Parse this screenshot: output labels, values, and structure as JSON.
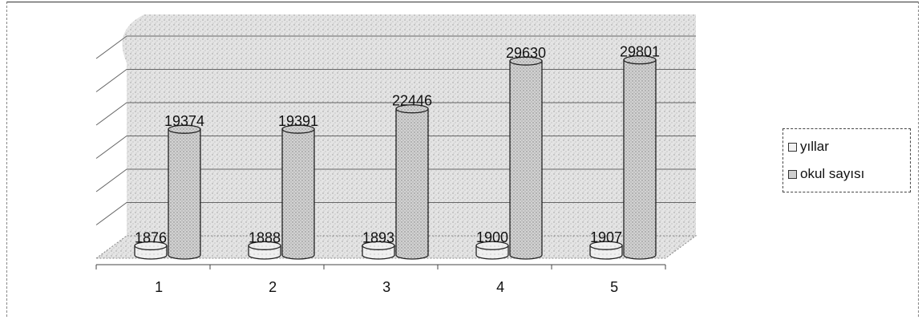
{
  "chart_data": {
    "type": "bar",
    "title": "",
    "xlabel": "",
    "ylabel": "",
    "categories": [
      "1",
      "2",
      "3",
      "4",
      "5"
    ],
    "series": [
      {
        "name": "yıllar",
        "values": [
          1876,
          1888,
          1893,
          1900,
          1907
        ]
      },
      {
        "name": "okul sayısı",
        "values": [
          19374,
          19391,
          22446,
          29630,
          29801
        ]
      }
    ],
    "ylim": [
      0,
      30000
    ],
    "grid": true,
    "legend_position": "right",
    "colors": {
      "series0": "#f2f2f2",
      "series1": "#d0d0d0",
      "wall": "#e6e6e6",
      "grid": "#666666"
    }
  }
}
